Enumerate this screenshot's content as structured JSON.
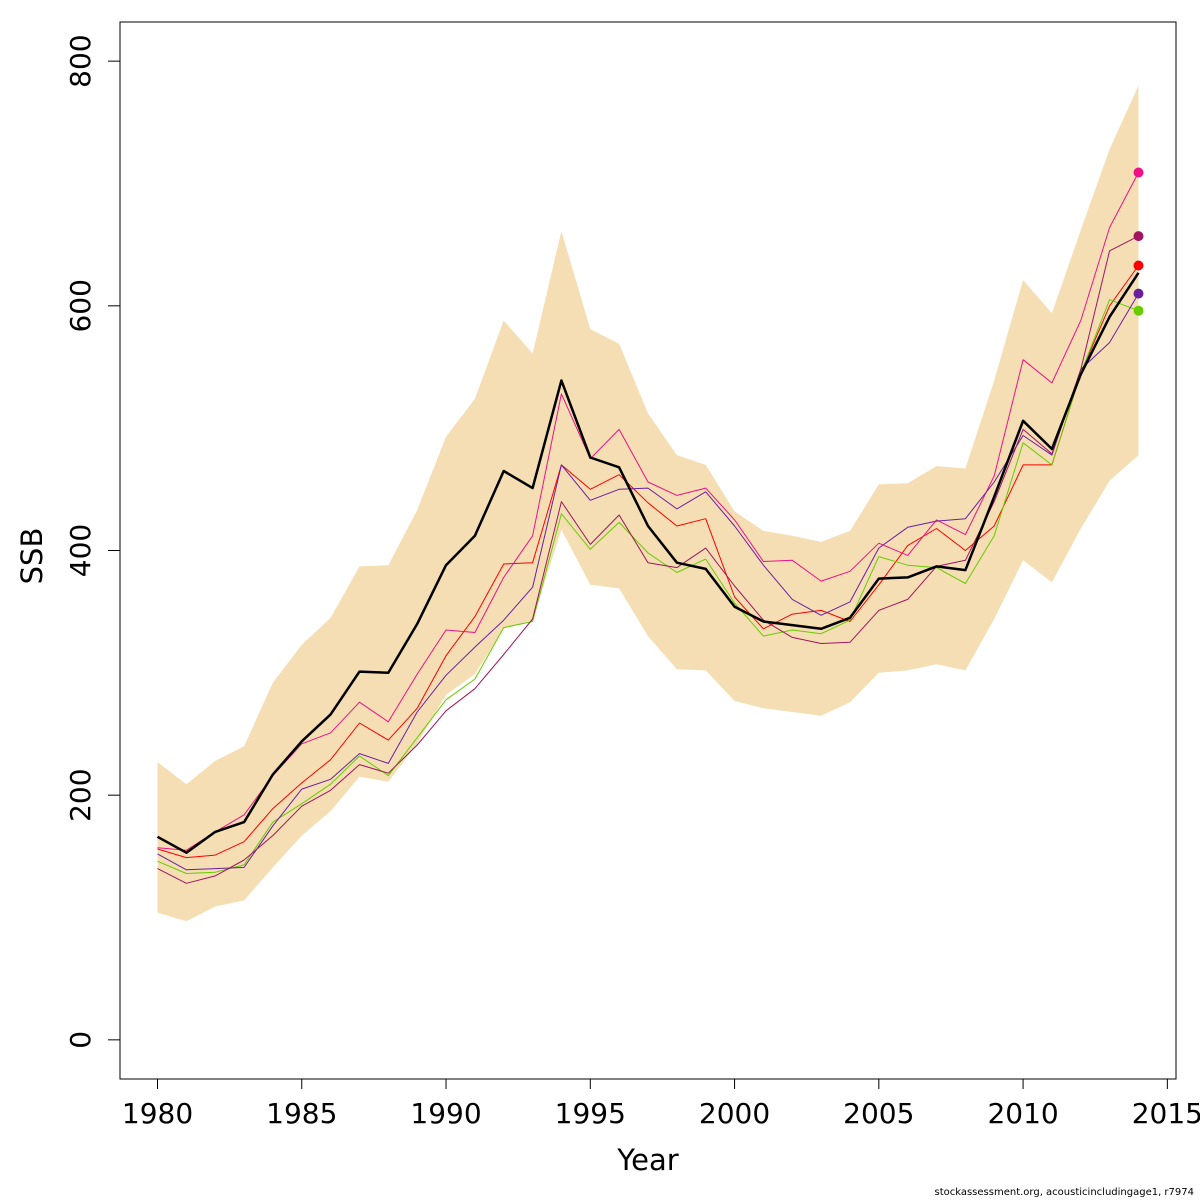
{
  "chart_data": {
    "type": "line",
    "xlabel": "Year",
    "ylabel": "SSB",
    "xlim": [
      1978.7,
      2015.3
    ],
    "ylim": [
      -32,
      832
    ],
    "x_ticks": [
      1980,
      1985,
      1990,
      1995,
      2000,
      2005,
      2010,
      2015
    ],
    "y_ticks": [
      0,
      200,
      400,
      600,
      800
    ],
    "x": [
      1980,
      1981,
      1982,
      1983,
      1984,
      1985,
      1986,
      1987,
      1988,
      1989,
      1990,
      1991,
      1992,
      1993,
      1994,
      1995,
      1996,
      1997,
      1998,
      1999,
      2000,
      2001,
      2002,
      2003,
      2004,
      2005,
      2006,
      2007,
      2008,
      2009,
      2010,
      2011,
      2012,
      2013,
      2014
    ],
    "band": {
      "color": "#f5deb3",
      "upper": [
        227,
        209,
        228,
        240,
        292,
        323,
        345,
        387,
        388,
        433,
        493,
        524,
        588,
        561,
        661,
        581,
        569,
        512,
        478,
        470,
        432,
        416,
        412,
        407,
        416,
        454,
        455,
        469,
        467,
        539,
        621,
        594,
        662,
        728,
        780
      ],
      "lower": [
        104,
        97,
        109,
        114,
        141,
        167,
        187,
        215,
        211,
        242,
        282,
        299,
        336,
        343,
        417,
        372,
        369,
        330,
        303,
        302,
        277,
        271,
        268,
        265,
        276,
        300,
        302,
        307,
        302,
        344,
        392,
        374,
        418,
        457,
        478
      ]
    },
    "series": [
      {
        "color": "#000000",
        "width": 2.5,
        "values": [
          166,
          153,
          170,
          178,
          217,
          244,
          266,
          301,
          300,
          340,
          388,
          412,
          465,
          451,
          539,
          476,
          468,
          420,
          390,
          385,
          354,
          342,
          339,
          336,
          345,
          377,
          378,
          387,
          384,
          444,
          506,
          483,
          544,
          591,
          627
        ]
      },
      {
        "color": "#ff0000",
        "width": 1,
        "end_marker": 633,
        "values": [
          156,
          149,
          151,
          162,
          189,
          210,
          229,
          259,
          245,
          271,
          314,
          346,
          389,
          390,
          470,
          450,
          462,
          439,
          420,
          426,
          362,
          336,
          348,
          351,
          342,
          372,
          404,
          418,
          400,
          420,
          470,
          470,
          545,
          600,
          633
        ]
      },
      {
        "color": "#ee1188",
        "width": 1,
        "end_marker": 709,
        "values": [
          157,
          155,
          170,
          184,
          216,
          242,
          251,
          276,
          260,
          299,
          335,
          333,
          378,
          412,
          528,
          475,
          499,
          456,
          445,
          451,
          425,
          391,
          392,
          375,
          383,
          406,
          396,
          425,
          413,
          461,
          556,
          537,
          588,
          664,
          709
        ]
      },
      {
        "color": "#66cc00",
        "width": 1,
        "end_marker": 596,
        "values": [
          146,
          136,
          137,
          143,
          178,
          193,
          209,
          232,
          216,
          247,
          278,
          295,
          337,
          342,
          430,
          401,
          423,
          398,
          382,
          393,
          357,
          330,
          335,
          332,
          343,
          395,
          388,
          386,
          373,
          412,
          488,
          470,
          545,
          605,
          596
        ]
      },
      {
        "color": "#6a1fa0",
        "width": 1,
        "end_marker": 610,
        "values": [
          152,
          139,
          140,
          141,
          175,
          205,
          213,
          234,
          226,
          268,
          298,
          321,
          343,
          370,
          470,
          441,
          450,
          451,
          434,
          448,
          420,
          388,
          360,
          347,
          358,
          402,
          419,
          424,
          426,
          456,
          494,
          478,
          548,
          570,
          610
        ]
      },
      {
        "color": "#a0155f",
        "width": 1,
        "end_marker": 657,
        "values": [
          140,
          128,
          134,
          147,
          167,
          191,
          204,
          225,
          218,
          241,
          269,
          287,
          315,
          344,
          440,
          405,
          429,
          390,
          386,
          402,
          371,
          343,
          329,
          324,
          325,
          351,
          360,
          387,
          392,
          440,
          499,
          479,
          548,
          645,
          657
        ]
      }
    ]
  },
  "footer_text": "stockassessment.org, acousticincludingage1, r7974"
}
